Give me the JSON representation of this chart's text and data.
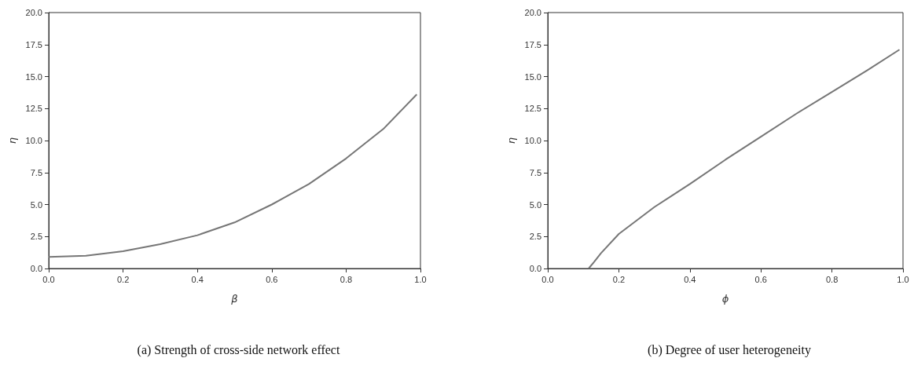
{
  "chart_data": [
    {
      "type": "line",
      "title": "(a) Strength of cross-side network effect",
      "xlabel": "β",
      "ylabel": "η",
      "xlim": [
        0,
        1
      ],
      "ylim": [
        0,
        20
      ],
      "xticks": [
        {
          "value": 0,
          "label": "0.0"
        },
        {
          "value": 0.2,
          "label": "0.2"
        },
        {
          "value": 0.4,
          "label": "0.4"
        },
        {
          "value": 0.6,
          "label": "0.6"
        },
        {
          "value": 0.8,
          "label": "0.8"
        },
        {
          "value": 1,
          "label": "1.0"
        }
      ],
      "yticks": [
        {
          "value": 0,
          "label": "0.0"
        },
        {
          "value": 2.5,
          "label": "2.5"
        },
        {
          "value": 5,
          "label": "5.0"
        },
        {
          "value": 7.5,
          "label": "7.5"
        },
        {
          "value": 10,
          "label": "10.0"
        },
        {
          "value": 12.5,
          "label": "12.5"
        },
        {
          "value": 15,
          "label": "15.0"
        },
        {
          "value": 17.5,
          "label": "17.5"
        },
        {
          "value": 20,
          "label": "20.0"
        }
      ],
      "x": [
        0,
        0.1,
        0.2,
        0.3,
        0.4,
        0.5,
        0.6,
        0.7,
        0.8,
        0.9,
        0.99
      ],
      "series": [
        {
          "color": "#767676",
          "values": [
            0.9,
            1.0,
            1.35,
            1.9,
            2.6,
            3.6,
            5.0,
            6.6,
            8.6,
            10.9,
            13.6
          ]
        }
      ],
      "grid": false,
      "marker": "none",
      "line_style": "solid"
    },
    {
      "type": "line",
      "title": "(b) Degree of user heterogeneity",
      "xlabel": "ϕ",
      "ylabel": "η",
      "xlim": [
        0,
        1
      ],
      "ylim": [
        0,
        20
      ],
      "xticks": [
        {
          "value": 0,
          "label": "0.0"
        },
        {
          "value": 0.2,
          "label": "0.2"
        },
        {
          "value": 0.4,
          "label": "0.4"
        },
        {
          "value": 0.6,
          "label": "0.6"
        },
        {
          "value": 0.8,
          "label": "0.8"
        },
        {
          "value": 1,
          "label": "1.0"
        }
      ],
      "yticks": [
        {
          "value": 0,
          "label": "0.0"
        },
        {
          "value": 2.5,
          "label": "2.5"
        },
        {
          "value": 5,
          "label": "5.0"
        },
        {
          "value": 7.5,
          "label": "7.5"
        },
        {
          "value": 10,
          "label": "10.0"
        },
        {
          "value": 12.5,
          "label": "12.5"
        },
        {
          "value": 15,
          "label": "15.0"
        },
        {
          "value": 17.5,
          "label": "17.5"
        },
        {
          "value": 20,
          "label": "20.0"
        }
      ],
      "x": [
        0.115,
        0.13,
        0.15,
        0.2,
        0.3,
        0.4,
        0.5,
        0.6,
        0.7,
        0.8,
        0.9,
        0.99
      ],
      "series": [
        {
          "color": "#767676",
          "values": [
            0,
            0.5,
            1.2,
            2.7,
            4.8,
            6.6,
            8.5,
            10.3,
            12.1,
            13.8,
            15.5,
            17.1
          ]
        }
      ],
      "grid": false,
      "marker": "none",
      "line_style": "solid"
    }
  ]
}
